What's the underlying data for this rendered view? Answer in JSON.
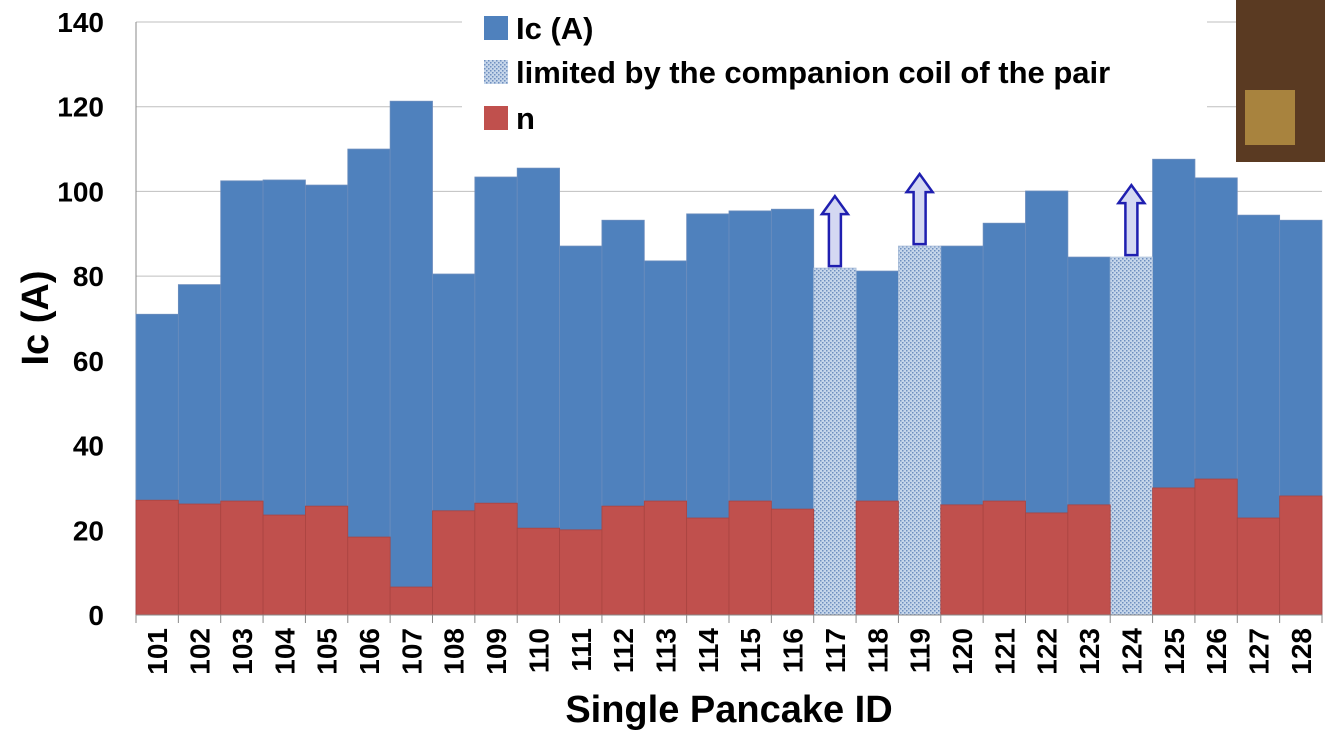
{
  "chart_data": {
    "type": "bar",
    "x_label": "Single Pancake ID",
    "y_label": "Ic (A)",
    "categories": [
      "101",
      "102",
      "103",
      "104",
      "105",
      "106",
      "107",
      "108",
      "109",
      "110",
      "111",
      "112",
      "113",
      "114",
      "115",
      "116",
      "117",
      "118",
      "119",
      "120",
      "121",
      "122",
      "123",
      "124",
      "125",
      "126",
      "127",
      "128"
    ],
    "series": [
      {
        "name": "Ic (A)",
        "color": "#4f81bd",
        "values": [
          71,
          78,
          102.5,
          102.7,
          101.5,
          110,
          121.3,
          80.5,
          103.4,
          105.5,
          87.1,
          93.2,
          83.6,
          94.7,
          95.4,
          95.8,
          null,
          81.2,
          null,
          87.1,
          92.5,
          100.1,
          84.5,
          null,
          107.6,
          103.2,
          94.4,
          93.2
        ]
      },
      {
        "name": "limited by the companion coil of the pair",
        "color": "#b8cce4",
        "values": [
          null,
          null,
          null,
          null,
          null,
          null,
          null,
          null,
          null,
          null,
          null,
          null,
          null,
          null,
          null,
          null,
          81.9,
          null,
          87.1,
          null,
          null,
          null,
          null,
          84.5,
          null,
          null,
          null,
          null
        ]
      },
      {
        "name": "n",
        "color": "#c0504d",
        "values": [
          27.1,
          26.2,
          26.9,
          23.6,
          25.7,
          18.4,
          6.6,
          24.6,
          26.4,
          20.5,
          20.1,
          25.7,
          26.9,
          22.9,
          26.9,
          25,
          null,
          26.9,
          null,
          26,
          26.9,
          24.1,
          26,
          null,
          30,
          32.1,
          22.9,
          28.1
        ]
      }
    ],
    "ylim": [
      0,
      140
    ],
    "yticks": [
      0,
      20,
      40,
      60,
      80,
      100,
      120,
      140
    ],
    "grid": true
  }
}
